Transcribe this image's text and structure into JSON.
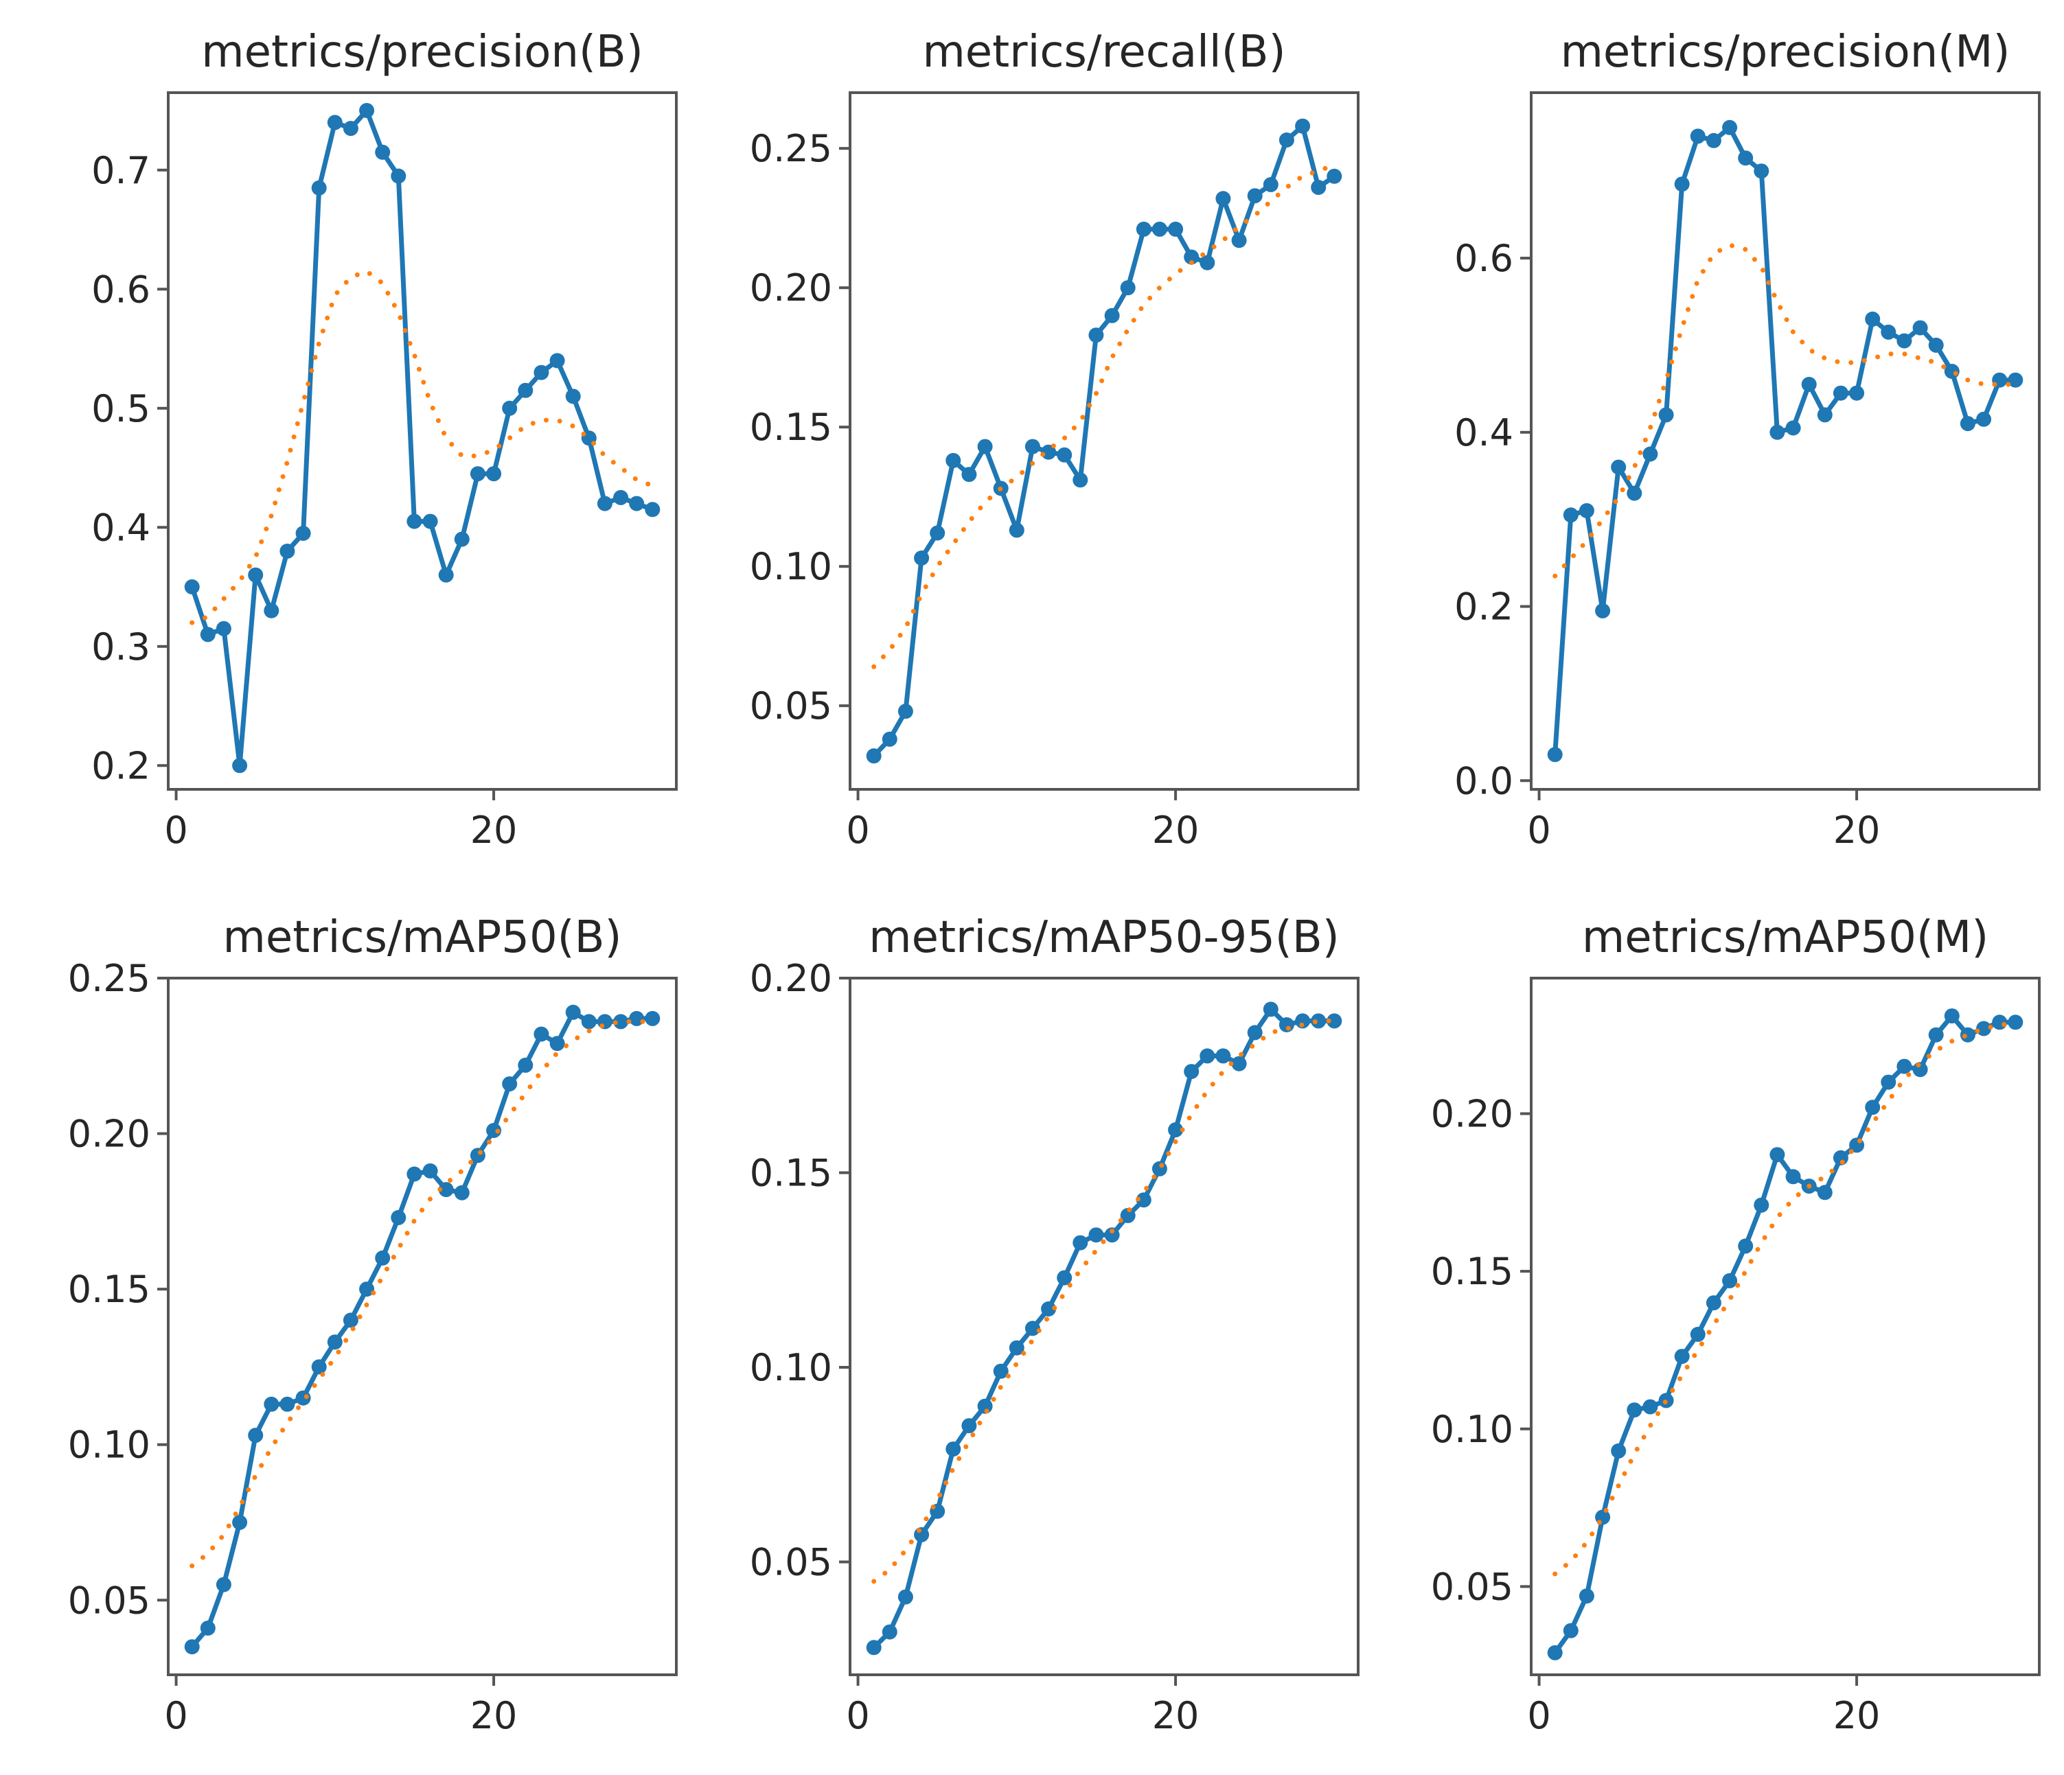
{
  "colors": {
    "results": "#1f77b4",
    "smooth": "#ff7f0e",
    "axes": "#555555",
    "text": "#262626"
  },
  "chart_data": [
    {
      "type": "line",
      "title": "metrics/precision(B)",
      "xlabel": "",
      "ylabel": "",
      "xlim": [
        -0.5,
        31.5
      ],
      "ylim": [
        0.18,
        0.765
      ],
      "xticks": [
        0,
        20
      ],
      "yticks": [
        0.2,
        0.3,
        0.4,
        0.5,
        0.6,
        0.7
      ],
      "ytick_labels": [
        "0.2",
        "0.3",
        "0.4",
        "0.5",
        "0.6",
        "0.7"
      ],
      "grid": false,
      "series": [
        {
          "style": "results",
          "x": [
            1,
            2,
            3,
            4,
            5,
            6,
            7,
            8,
            9,
            10,
            11,
            12,
            13,
            14,
            15,
            16,
            17,
            18,
            19,
            20,
            21,
            22,
            23,
            24,
            25,
            26,
            27,
            28,
            29,
            30
          ],
          "y": [
            0.35,
            0.31,
            0.315,
            0.2,
            0.36,
            0.33,
            0.38,
            0.395,
            0.685,
            0.74,
            0.735,
            0.75,
            0.715,
            0.695,
            0.405,
            0.405,
            0.36,
            0.39,
            0.445,
            0.445,
            0.5,
            0.515,
            0.53,
            0.54,
            0.51,
            0.475,
            0.42,
            0.425,
            0.42,
            0.415
          ]
        },
        {
          "style": "smooth",
          "x": [
            1,
            2,
            3,
            4,
            5,
            6,
            7,
            8,
            9,
            10,
            11,
            12,
            13,
            14,
            15,
            16,
            17,
            18,
            19,
            20,
            21,
            22,
            23,
            24,
            25,
            26,
            27,
            28,
            29,
            30
          ],
          "y": [
            0.32,
            0.325,
            0.34,
            0.355,
            0.375,
            0.41,
            0.455,
            0.505,
            0.555,
            0.595,
            0.61,
            0.615,
            0.605,
            0.58,
            0.545,
            0.505,
            0.475,
            0.46,
            0.46,
            0.465,
            0.475,
            0.485,
            0.49,
            0.49,
            0.485,
            0.475,
            0.46,
            0.45,
            0.44,
            0.435
          ]
        }
      ]
    },
    {
      "type": "line",
      "title": "metrics/recall(B)",
      "xlabel": "",
      "ylabel": "",
      "xlim": [
        -0.5,
        31.5
      ],
      "ylim": [
        0.02,
        0.27
      ],
      "xticks": [
        0,
        20
      ],
      "yticks": [
        0.05,
        0.1,
        0.15,
        0.2,
        0.25
      ],
      "ytick_labels": [
        "0.05",
        "0.10",
        "0.15",
        "0.20",
        "0.25"
      ],
      "grid": false,
      "series": [
        {
          "style": "results",
          "x": [
            1,
            2,
            3,
            4,
            5,
            6,
            7,
            8,
            9,
            10,
            11,
            12,
            13,
            14,
            15,
            16,
            17,
            18,
            19,
            20,
            21,
            22,
            23,
            24,
            25,
            26,
            27,
            28,
            29,
            30
          ],
          "y": [
            0.032,
            0.038,
            0.048,
            0.103,
            0.112,
            0.138,
            0.133,
            0.143,
            0.128,
            0.113,
            0.143,
            0.141,
            0.14,
            0.131,
            0.183,
            0.19,
            0.2,
            0.221,
            0.221,
            0.221,
            0.211,
            0.209,
            0.232,
            0.217,
            0.233,
            0.237,
            0.253,
            0.258,
            0.236,
            0.24
          ]
        },
        {
          "style": "smooth",
          "x": [
            1,
            2,
            3,
            4,
            5,
            6,
            7,
            8,
            9,
            10,
            11,
            12,
            13,
            14,
            15,
            16,
            17,
            18,
            19,
            20,
            21,
            22,
            23,
            24,
            25,
            26,
            27,
            28,
            29,
            30
          ],
          "y": [
            0.064,
            0.07,
            0.078,
            0.09,
            0.1,
            0.108,
            0.116,
            0.123,
            0.128,
            0.132,
            0.137,
            0.142,
            0.146,
            0.152,
            0.162,
            0.175,
            0.185,
            0.194,
            0.2,
            0.205,
            0.209,
            0.213,
            0.217,
            0.222,
            0.226,
            0.231,
            0.236,
            0.24,
            0.242,
            0.244
          ]
        }
      ]
    },
    {
      "type": "line",
      "title": "metrics/precision(M)",
      "xlabel": "",
      "ylabel": "",
      "xlim": [
        -0.5,
        31.5
      ],
      "ylim": [
        -0.01,
        0.79
      ],
      "xticks": [
        0,
        20
      ],
      "yticks": [
        0.0,
        0.2,
        0.4,
        0.6
      ],
      "ytick_labels": [
        "0.0",
        "0.2",
        "0.4",
        "0.6"
      ],
      "grid": false,
      "series": [
        {
          "style": "results",
          "x": [
            1,
            2,
            3,
            4,
            5,
            6,
            7,
            8,
            9,
            10,
            11,
            12,
            13,
            14,
            15,
            16,
            17,
            18,
            19,
            20,
            21,
            22,
            23,
            24,
            25,
            26,
            27,
            28,
            29,
            30
          ],
          "y": [
            0.03,
            0.305,
            0.31,
            0.195,
            0.36,
            0.33,
            0.375,
            0.42,
            0.685,
            0.74,
            0.735,
            0.75,
            0.715,
            0.7,
            0.4,
            0.405,
            0.455,
            0.42,
            0.445,
            0.445,
            0.53,
            0.515,
            0.505,
            0.52,
            0.5,
            0.47,
            0.41,
            0.415,
            0.46,
            0.46
          ]
        },
        {
          "style": "smooth",
          "x": [
            1,
            2,
            3,
            4,
            5,
            6,
            7,
            8,
            9,
            10,
            11,
            12,
            13,
            14,
            15,
            16,
            17,
            18,
            19,
            20,
            21,
            22,
            23,
            24,
            25,
            26,
            27,
            28,
            29,
            30
          ],
          "y": [
            0.235,
            0.255,
            0.275,
            0.3,
            0.325,
            0.36,
            0.405,
            0.46,
            0.52,
            0.575,
            0.605,
            0.615,
            0.61,
            0.59,
            0.55,
            0.515,
            0.495,
            0.485,
            0.48,
            0.48,
            0.485,
            0.49,
            0.49,
            0.485,
            0.48,
            0.47,
            0.46,
            0.455,
            0.455,
            0.455
          ]
        }
      ]
    },
    {
      "type": "line",
      "title": "metrics/mAP50(B)",
      "xlabel": "",
      "ylabel": "",
      "xlim": [
        -0.5,
        31.5
      ],
      "ylim": [
        0.026,
        0.25
      ],
      "xticks": [
        0,
        20
      ],
      "yticks": [
        0.05,
        0.1,
        0.15,
        0.2,
        0.25
      ],
      "ytick_labels": [
        "0.05",
        "0.10",
        "0.15",
        "0.20",
        "0.25"
      ],
      "grid": false,
      "series": [
        {
          "style": "results",
          "x": [
            1,
            2,
            3,
            4,
            5,
            6,
            7,
            8,
            9,
            10,
            11,
            12,
            13,
            14,
            15,
            16,
            17,
            18,
            19,
            20,
            21,
            22,
            23,
            24,
            25,
            26,
            27,
            28,
            29,
            30
          ],
          "y": [
            0.035,
            0.041,
            0.055,
            0.075,
            0.103,
            0.113,
            0.113,
            0.115,
            0.125,
            0.133,
            0.14,
            0.15,
            0.16,
            0.173,
            0.187,
            0.188,
            0.182,
            0.181,
            0.193,
            0.201,
            0.216,
            0.222,
            0.232,
            0.229,
            0.239,
            0.236,
            0.236,
            0.236,
            0.237,
            0.237
          ]
        },
        {
          "style": "smooth",
          "x": [
            1,
            2,
            3,
            4,
            5,
            6,
            7,
            8,
            9,
            10,
            11,
            12,
            13,
            14,
            15,
            16,
            17,
            18,
            19,
            20,
            21,
            22,
            23,
            24,
            25,
            26,
            27,
            28,
            29,
            30
          ],
          "y": [
            0.061,
            0.065,
            0.071,
            0.08,
            0.09,
            0.099,
            0.107,
            0.114,
            0.121,
            0.128,
            0.136,
            0.145,
            0.154,
            0.163,
            0.172,
            0.179,
            0.184,
            0.188,
            0.193,
            0.199,
            0.206,
            0.213,
            0.22,
            0.226,
            0.23,
            0.233,
            0.235,
            0.236,
            0.236,
            0.236
          ]
        }
      ]
    },
    {
      "type": "line",
      "title": "metrics/mAP50-95(B)",
      "xlabel": "",
      "ylabel": "",
      "xlim": [
        -0.5,
        31.5
      ],
      "ylim": [
        0.021,
        0.2
      ],
      "xticks": [
        0,
        20
      ],
      "yticks": [
        0.05,
        0.1,
        0.15,
        0.2
      ],
      "ytick_labels": [
        "0.05",
        "0.10",
        "0.15",
        "0.20"
      ],
      "grid": false,
      "series": [
        {
          "style": "results",
          "x": [
            1,
            2,
            3,
            4,
            5,
            6,
            7,
            8,
            9,
            10,
            11,
            12,
            13,
            14,
            15,
            16,
            17,
            18,
            19,
            20,
            21,
            22,
            23,
            24,
            25,
            26,
            27,
            28,
            29,
            30
          ],
          "y": [
            0.028,
            0.032,
            0.041,
            0.057,
            0.063,
            0.079,
            0.085,
            0.09,
            0.099,
            0.105,
            0.11,
            0.115,
            0.123,
            0.132,
            0.134,
            0.134,
            0.139,
            0.143,
            0.151,
            0.161,
            0.176,
            0.18,
            0.18,
            0.178,
            0.186,
            0.192,
            0.188,
            0.189,
            0.189,
            0.189
          ]
        },
        {
          "style": "smooth",
          "x": [
            1,
            2,
            3,
            4,
            5,
            6,
            7,
            8,
            9,
            10,
            11,
            12,
            13,
            14,
            15,
            16,
            17,
            18,
            19,
            20,
            21,
            22,
            23,
            24,
            25,
            26,
            27,
            28,
            29,
            30
          ],
          "y": [
            0.045,
            0.048,
            0.053,
            0.059,
            0.066,
            0.074,
            0.081,
            0.088,
            0.095,
            0.101,
            0.107,
            0.113,
            0.119,
            0.125,
            0.13,
            0.135,
            0.14,
            0.145,
            0.151,
            0.158,
            0.165,
            0.171,
            0.176,
            0.18,
            0.183,
            0.186,
            0.187,
            0.188,
            0.189,
            0.189
          ]
        }
      ]
    },
    {
      "type": "line",
      "title": "metrics/mAP50(M)",
      "xlabel": "",
      "ylabel": "",
      "xlim": [
        -0.5,
        31.5
      ],
      "ylim": [
        0.022,
        0.243
      ],
      "xticks": [
        0,
        20
      ],
      "yticks": [
        0.05,
        0.1,
        0.15,
        0.2
      ],
      "ytick_labels": [
        "0.05",
        "0.10",
        "0.15",
        "0.20"
      ],
      "grid": false,
      "series": [
        {
          "style": "results",
          "x": [
            1,
            2,
            3,
            4,
            5,
            6,
            7,
            8,
            9,
            10,
            11,
            12,
            13,
            14,
            15,
            16,
            17,
            18,
            19,
            20,
            21,
            22,
            23,
            24,
            25,
            26,
            27,
            28,
            29,
            30
          ],
          "y": [
            0.029,
            0.036,
            0.047,
            0.072,
            0.093,
            0.106,
            0.107,
            0.109,
            0.123,
            0.13,
            0.14,
            0.147,
            0.158,
            0.171,
            0.187,
            0.18,
            0.177,
            0.175,
            0.186,
            0.19,
            0.202,
            0.21,
            0.215,
            0.214,
            0.225,
            0.231,
            0.225,
            0.227,
            0.229,
            0.229
          ]
        },
        {
          "style": "smooth",
          "x": [
            1,
            2,
            3,
            4,
            5,
            6,
            7,
            8,
            9,
            10,
            11,
            12,
            13,
            14,
            15,
            16,
            17,
            18,
            19,
            20,
            21,
            22,
            23,
            24,
            25,
            26,
            27,
            28,
            29,
            30
          ],
          "y": [
            0.054,
            0.058,
            0.064,
            0.072,
            0.082,
            0.092,
            0.101,
            0.109,
            0.117,
            0.125,
            0.133,
            0.141,
            0.15,
            0.159,
            0.167,
            0.173,
            0.177,
            0.18,
            0.184,
            0.19,
            0.197,
            0.204,
            0.211,
            0.216,
            0.22,
            0.223,
            0.225,
            0.227,
            0.228,
            0.229
          ]
        }
      ]
    }
  ]
}
